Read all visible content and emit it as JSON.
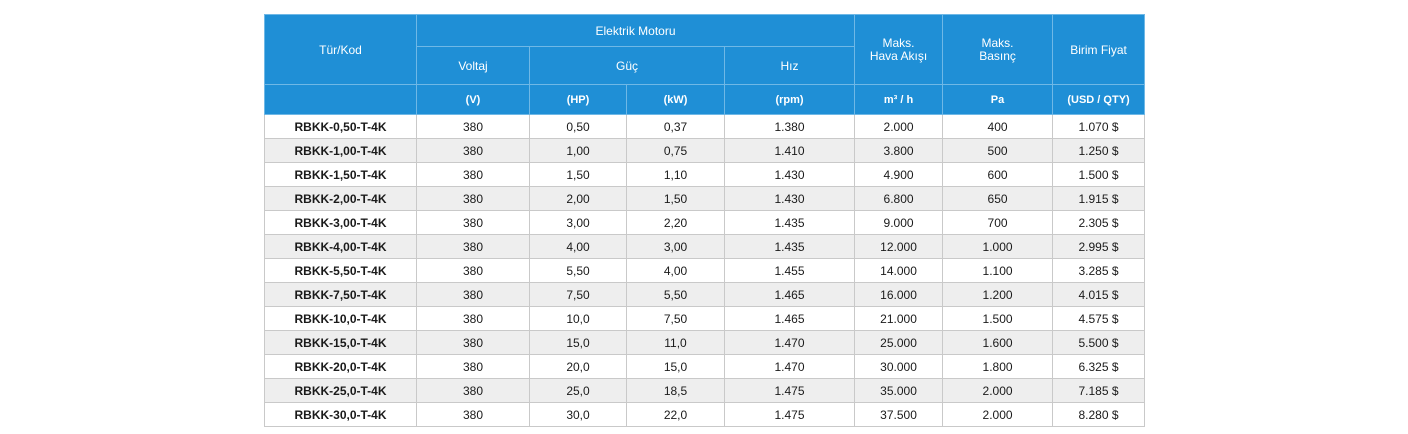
{
  "header": {
    "type_code": "Tür/Kod",
    "electric_motor": "Elektrik Motoru",
    "voltage": "Voltaj",
    "power": "Güç",
    "speed": "Hız",
    "max_air_flow": "Maks. Hava Akışı",
    "max_pressure": "Maks. Basınç",
    "unit_price": "Birim Fiyat"
  },
  "units": {
    "voltage": "(V)",
    "hp": "(HP)",
    "kw": "(kW)",
    "rpm": "(rpm)",
    "air_flow": "m³ / h",
    "pressure": "Pa",
    "price": "(USD / QTY)"
  },
  "rows": [
    {
      "code": "RBKK-0,50-T-4K",
      "voltage": "380",
      "hp": "0,50",
      "kw": "0,37",
      "rpm": "1.380",
      "flow": "2.000",
      "pressure": "400",
      "price": "1.070 $"
    },
    {
      "code": "RBKK-1,00-T-4K",
      "voltage": "380",
      "hp": "1,00",
      "kw": "0,75",
      "rpm": "1.410",
      "flow": "3.800",
      "pressure": "500",
      "price": "1.250 $"
    },
    {
      "code": "RBKK-1,50-T-4K",
      "voltage": "380",
      "hp": "1,50",
      "kw": "1,10",
      "rpm": "1.430",
      "flow": "4.900",
      "pressure": "600",
      "price": "1.500 $"
    },
    {
      "code": "RBKK-2,00-T-4K",
      "voltage": "380",
      "hp": "2,00",
      "kw": "1,50",
      "rpm": "1.430",
      "flow": "6.800",
      "pressure": "650",
      "price": "1.915 $"
    },
    {
      "code": "RBKK-3,00-T-4K",
      "voltage": "380",
      "hp": "3,00",
      "kw": "2,20",
      "rpm": "1.435",
      "flow": "9.000",
      "pressure": "700",
      "price": "2.305 $"
    },
    {
      "code": "RBKK-4,00-T-4K",
      "voltage": "380",
      "hp": "4,00",
      "kw": "3,00",
      "rpm": "1.435",
      "flow": "12.000",
      "pressure": "1.000",
      "price": "2.995 $"
    },
    {
      "code": "RBKK-5,50-T-4K",
      "voltage": "380",
      "hp": "5,50",
      "kw": "4,00",
      "rpm": "1.455",
      "flow": "14.000",
      "pressure": "1.100",
      "price": "3.285 $"
    },
    {
      "code": "RBKK-7,50-T-4K",
      "voltage": "380",
      "hp": "7,50",
      "kw": "5,50",
      "rpm": "1.465",
      "flow": "16.000",
      "pressure": "1.200",
      "price": "4.015 $"
    },
    {
      "code": "RBKK-10,0-T-4K",
      "voltage": "380",
      "hp": "10,0",
      "kw": "7,50",
      "rpm": "1.465",
      "flow": "21.000",
      "pressure": "1.500",
      "price": "4.575 $"
    },
    {
      "code": "RBKK-15,0-T-4K",
      "voltage": "380",
      "hp": "15,0",
      "kw": "11,0",
      "rpm": "1.470",
      "flow": "25.000",
      "pressure": "1.600",
      "price": "5.500 $"
    },
    {
      "code": "RBKK-20,0-T-4K",
      "voltage": "380",
      "hp": "20,0",
      "kw": "15,0",
      "rpm": "1.470",
      "flow": "30.000",
      "pressure": "1.800",
      "price": "6.325 $"
    },
    {
      "code": "RBKK-25,0-T-4K",
      "voltage": "380",
      "hp": "25,0",
      "kw": "18,5",
      "rpm": "1.475",
      "flow": "35.000",
      "pressure": "2.000",
      "price": "7.185 $"
    },
    {
      "code": "RBKK-30,0-T-4K",
      "voltage": "380",
      "hp": "30,0",
      "kw": "22,0",
      "rpm": "1.475",
      "flow": "37.500",
      "pressure": "2.000",
      "price": "8.280 $"
    }
  ],
  "colors": {
    "header_bg": "#1f8fd6",
    "header_text": "#ffffff",
    "row_alt": "#eeeeee",
    "border": "#c9c9c9"
  }
}
